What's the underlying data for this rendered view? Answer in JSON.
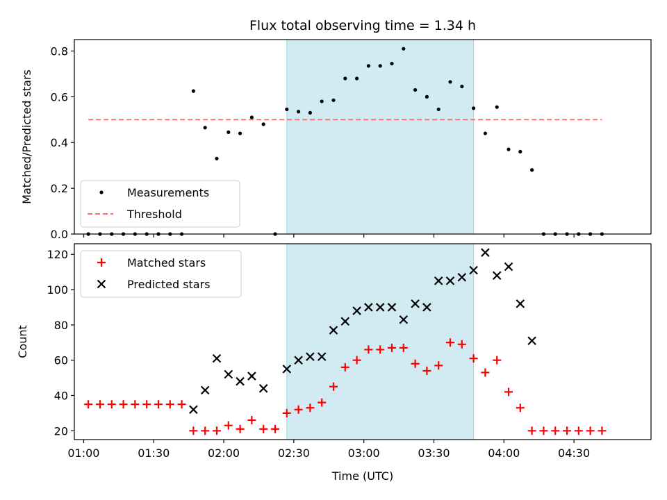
{
  "chart_data": {
    "title": "Flux total observing time = 1.34 h",
    "xlabel": "Time (UTC)",
    "x_tick_labels": [
      "01:00",
      "01:30",
      "02:00",
      "02:30",
      "03:00",
      "03:30",
      "04:00",
      "04:30"
    ],
    "x_range": [
      "00:56",
      "05:03"
    ],
    "shaded_interval": [
      "02:27",
      "03:47"
    ],
    "shade_color": "#add8e6",
    "panels": [
      {
        "type": "scatter",
        "ylabel": "Matched/Predicted stars",
        "ylim": [
          0,
          0.85
        ],
        "y_ticks": [
          0.0,
          0.2,
          0.4,
          0.6,
          0.8
        ],
        "y_tick_labels": [
          "0.0",
          "0.2",
          "0.4",
          "0.6",
          "0.8"
        ],
        "legend_position": "lower-left",
        "series": [
          {
            "name": "Measurements",
            "marker": "dot",
            "color": "#000000",
            "points": [
              [
                "01:02",
                0.0
              ],
              [
                "01:07",
                0.0
              ],
              [
                "01:12",
                0.0
              ],
              [
                "01:17",
                0.0
              ],
              [
                "01:22",
                0.0
              ],
              [
                "01:27",
                0.0
              ],
              [
                "01:32",
                0.0
              ],
              [
                "01:37",
                0.0
              ],
              [
                "01:42",
                0.0
              ],
              [
                "01:47",
                0.625
              ],
              [
                "01:52",
                0.465
              ],
              [
                "01:57",
                0.33
              ],
              [
                "02:02",
                0.445
              ],
              [
                "02:07",
                0.44
              ],
              [
                "02:12",
                0.51
              ],
              [
                "02:17",
                0.48
              ],
              [
                "02:22",
                0.0
              ],
              [
                "02:27",
                0.545
              ],
              [
                "02:32",
                0.535
              ],
              [
                "02:37",
                0.53
              ],
              [
                "02:42",
                0.58
              ],
              [
                "02:47",
                0.585
              ],
              [
                "02:52",
                0.68
              ],
              [
                "02:57",
                0.68
              ],
              [
                "03:02",
                0.735
              ],
              [
                "03:07",
                0.735
              ],
              [
                "03:12",
                0.745
              ],
              [
                "03:17",
                0.81
              ],
              [
                "03:22",
                0.63
              ],
              [
                "03:27",
                0.6
              ],
              [
                "03:32",
                0.545
              ],
              [
                "03:37",
                0.665
              ],
              [
                "03:42",
                0.645
              ],
              [
                "03:47",
                0.55
              ],
              [
                "03:52",
                0.44
              ],
              [
                "03:57",
                0.555
              ],
              [
                "04:02",
                0.37
              ],
              [
                "04:07",
                0.36
              ],
              [
                "04:12",
                0.28
              ],
              [
                "04:17",
                0.0
              ],
              [
                "04:22",
                0.0
              ],
              [
                "04:27",
                0.0
              ],
              [
                "04:32",
                0.0
              ],
              [
                "04:37",
                0.0
              ],
              [
                "04:42",
                0.0
              ]
            ]
          },
          {
            "name": "Threshold",
            "marker": "dashed-line",
            "color": "#ff7070",
            "points": [
              [
                "01:02",
                0.5
              ],
              [
                "04:42",
                0.5
              ]
            ]
          }
        ]
      },
      {
        "type": "scatter",
        "ylabel": "Count",
        "ylim": [
          15,
          126
        ],
        "y_ticks": [
          20,
          40,
          60,
          80,
          100,
          120
        ],
        "y_tick_labels": [
          "20",
          "40",
          "60",
          "80",
          "100",
          "120"
        ],
        "legend_position": "upper-left",
        "series": [
          {
            "name": "Matched stars",
            "marker": "plus",
            "color": "#ff0000",
            "points": [
              [
                "01:02",
                35
              ],
              [
                "01:07",
                35
              ],
              [
                "01:12",
                35
              ],
              [
                "01:17",
                35
              ],
              [
                "01:22",
                35
              ],
              [
                "01:27",
                35
              ],
              [
                "01:32",
                35
              ],
              [
                "01:37",
                35
              ],
              [
                "01:42",
                35
              ],
              [
                "01:47",
                20
              ],
              [
                "01:52",
                20
              ],
              [
                "01:57",
                20
              ],
              [
                "02:02",
                23
              ],
              [
                "02:07",
                21
              ],
              [
                "02:12",
                26
              ],
              [
                "02:17",
                21
              ],
              [
                "02:22",
                21
              ],
              [
                "02:27",
                30
              ],
              [
                "02:32",
                32
              ],
              [
                "02:37",
                33
              ],
              [
                "02:42",
                36
              ],
              [
                "02:47",
                45
              ],
              [
                "02:52",
                56
              ],
              [
                "02:57",
                60
              ],
              [
                "03:02",
                66
              ],
              [
                "03:07",
                66
              ],
              [
                "03:12",
                67
              ],
              [
                "03:17",
                67
              ],
              [
                "03:22",
                58
              ],
              [
                "03:27",
                54
              ],
              [
                "03:32",
                57
              ],
              [
                "03:37",
                70
              ],
              [
                "03:42",
                69
              ],
              [
                "03:47",
                61
              ],
              [
                "03:52",
                53
              ],
              [
                "03:57",
                60
              ],
              [
                "04:02",
                42
              ],
              [
                "04:07",
                33
              ],
              [
                "04:12",
                20
              ],
              [
                "04:17",
                20
              ],
              [
                "04:22",
                20
              ],
              [
                "04:27",
                20
              ],
              [
                "04:32",
                20
              ],
              [
                "04:37",
                20
              ],
              [
                "04:42",
                20
              ]
            ]
          },
          {
            "name": "Predicted stars",
            "marker": "x",
            "color": "#000000",
            "points": [
              [
                "01:47",
                32
              ],
              [
                "01:52",
                43
              ],
              [
                "01:57",
                61
              ],
              [
                "02:02",
                52
              ],
              [
                "02:07",
                48
              ],
              [
                "02:12",
                51
              ],
              [
                "02:17",
                44
              ],
              [
                "02:27",
                55
              ],
              [
                "02:32",
                60
              ],
              [
                "02:37",
                62
              ],
              [
                "02:42",
                62
              ],
              [
                "02:47",
                77
              ],
              [
                "02:52",
                82
              ],
              [
                "02:57",
                88
              ],
              [
                "03:02",
                90
              ],
              [
                "03:07",
                90
              ],
              [
                "03:12",
                90
              ],
              [
                "03:17",
                83
              ],
              [
                "03:22",
                92
              ],
              [
                "03:27",
                90
              ],
              [
                "03:32",
                105
              ],
              [
                "03:37",
                105
              ],
              [
                "03:42",
                107
              ],
              [
                "03:47",
                111
              ],
              [
                "03:52",
                121
              ],
              [
                "03:57",
                108
              ],
              [
                "04:02",
                113
              ],
              [
                "04:07",
                92
              ],
              [
                "04:12",
                71
              ]
            ]
          }
        ]
      }
    ]
  }
}
